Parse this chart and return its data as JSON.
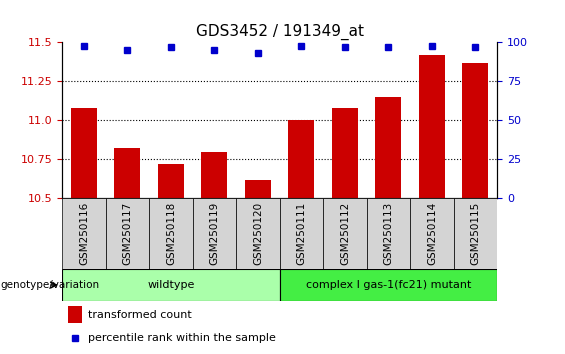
{
  "title": "GDS3452 / 191349_at",
  "samples": [
    "GSM250116",
    "GSM250117",
    "GSM250118",
    "GSM250119",
    "GSM250120",
    "GSM250111",
    "GSM250112",
    "GSM250113",
    "GSM250114",
    "GSM250115"
  ],
  "bar_values": [
    11.08,
    10.82,
    10.72,
    10.8,
    10.62,
    11.0,
    11.08,
    11.15,
    11.42,
    11.37
  ],
  "percentile_values": [
    98,
    95,
    97,
    95,
    93,
    98,
    97,
    97,
    98,
    97
  ],
  "bar_color": "#cc0000",
  "dot_color": "#0000cc",
  "ylim_left": [
    10.5,
    11.5
  ],
  "ylim_right": [
    0,
    100
  ],
  "yticks_left": [
    10.5,
    10.75,
    11.0,
    11.25,
    11.5
  ],
  "yticks_right": [
    0,
    25,
    50,
    75,
    100
  ],
  "groups": [
    {
      "label": "wildtype",
      "start": 0,
      "end": 5,
      "color": "#aaffaa"
    },
    {
      "label": "complex I gas-1(fc21) mutant",
      "start": 5,
      "end": 10,
      "color": "#44ee44"
    }
  ],
  "group_label": "genotype/variation",
  "legend_bar_label": "transformed count",
  "legend_dot_label": "percentile rank within the sample",
  "title_fontsize": 11,
  "tick_label_fontsize": 7.5,
  "sample_label_fontsize": 7.5
}
